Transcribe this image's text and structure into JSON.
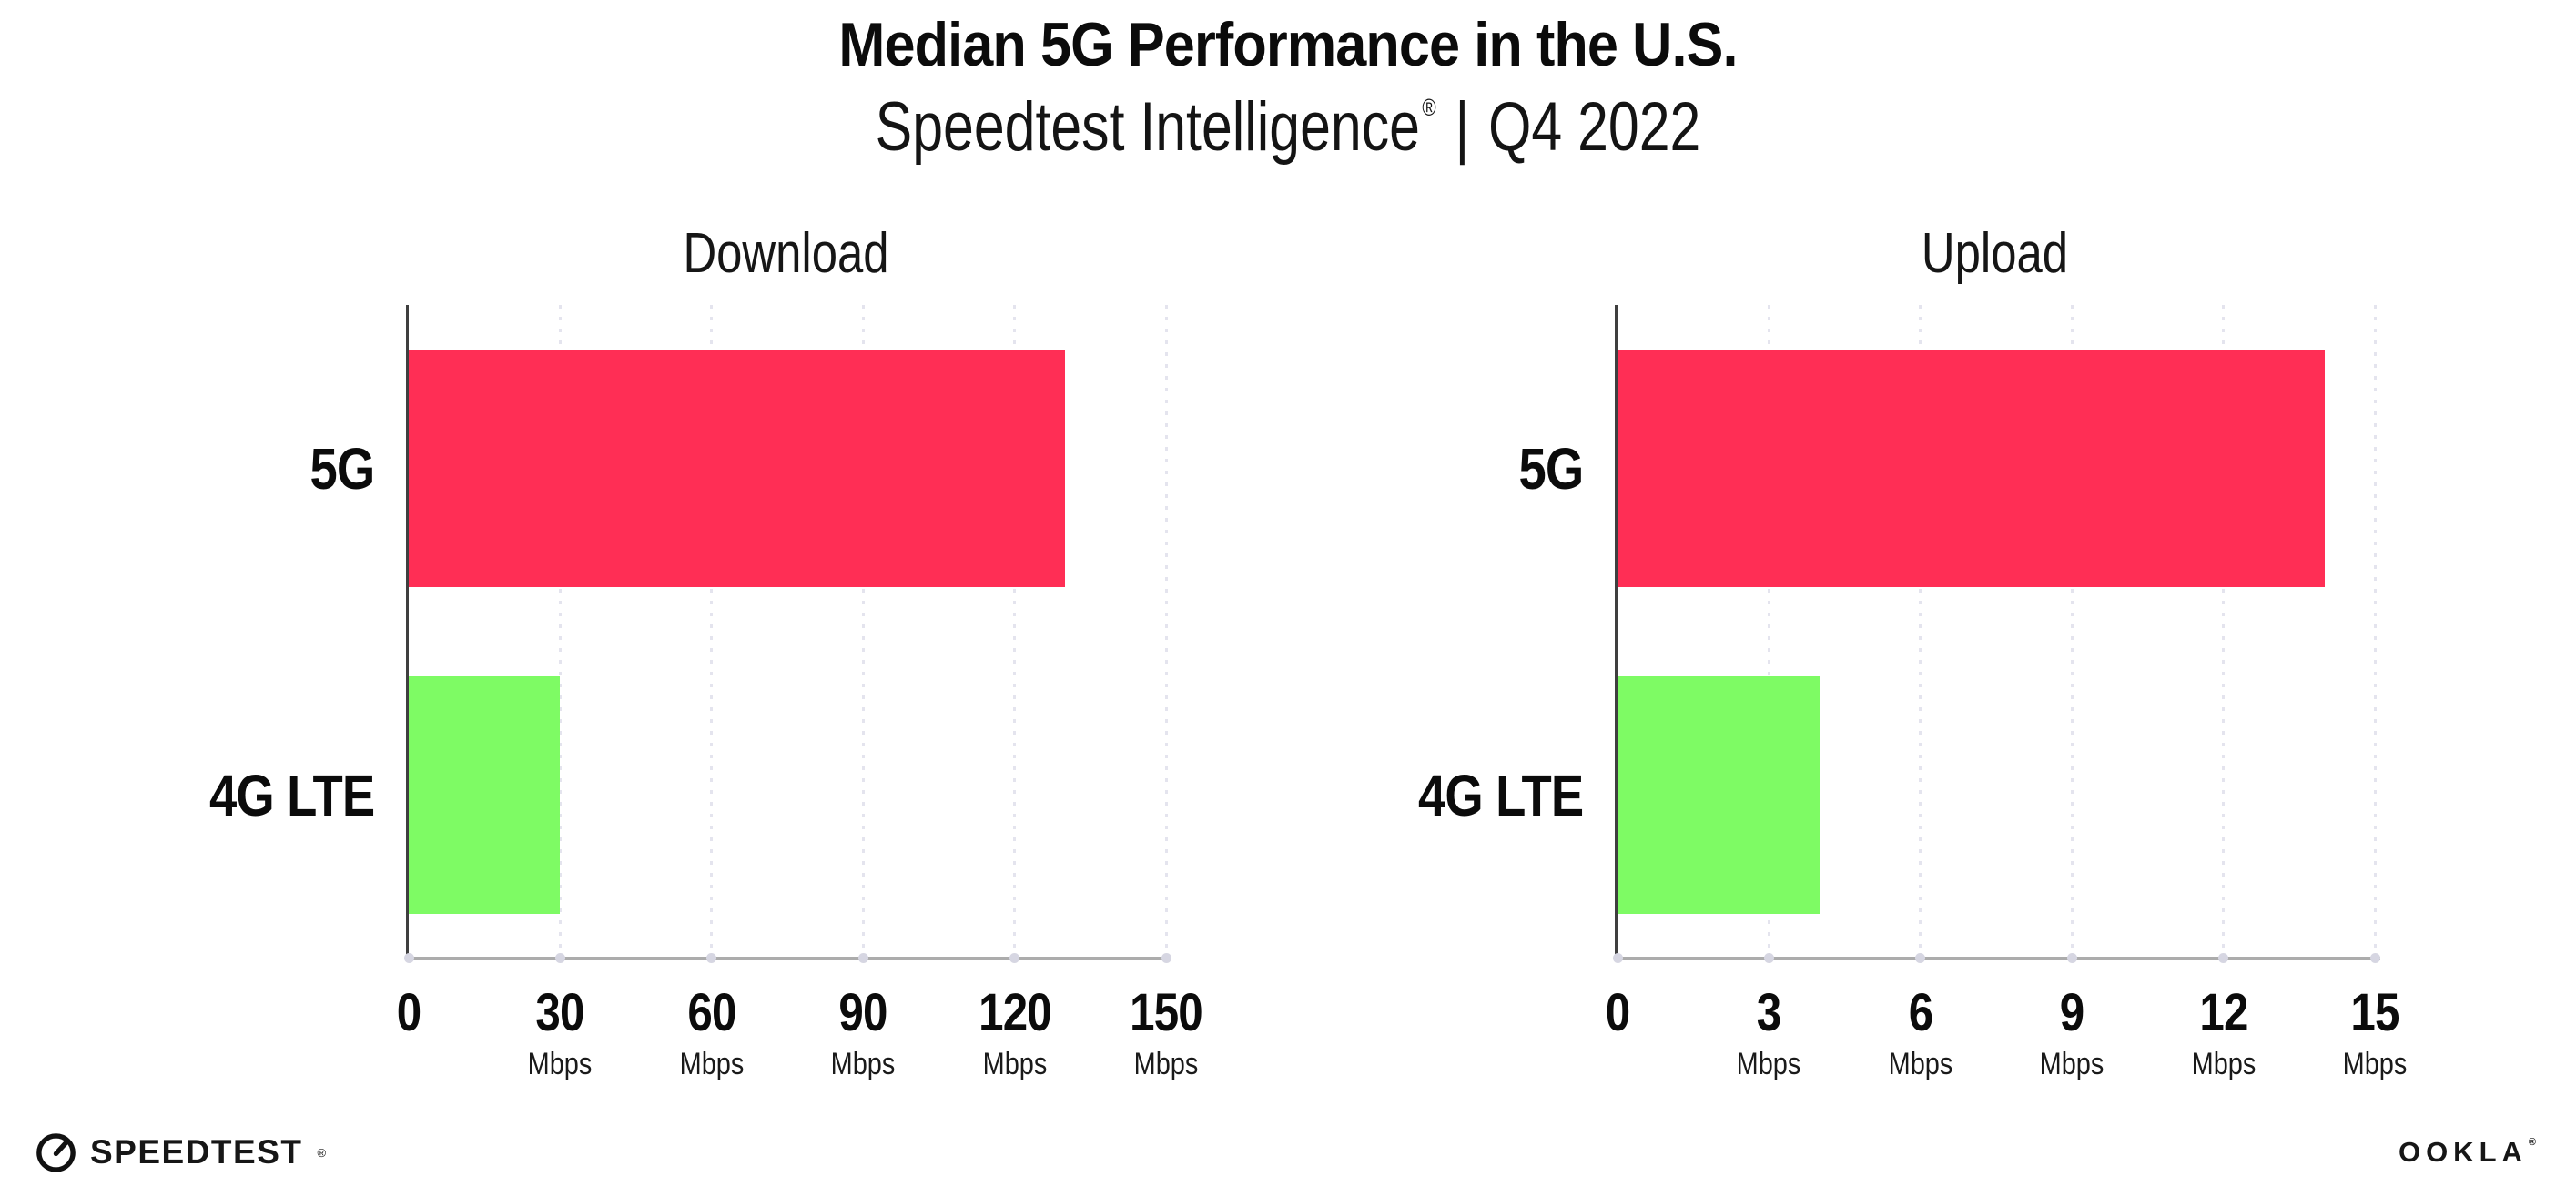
{
  "header": {
    "title": "Median 5G Performance in the U.S.",
    "subtitle_brand": "Speedtest Intelligence",
    "subtitle_reg": "®",
    "subtitle_separator": "|",
    "subtitle_period": "Q4 2022"
  },
  "chart_data": [
    {
      "type": "bar",
      "orientation": "horizontal",
      "title": "Download",
      "categories": [
        "5G",
        "4G LTE"
      ],
      "values": [
        130,
        30
      ],
      "value_unit": "Mbps",
      "xlim": [
        0,
        150
      ],
      "ticks": [
        0,
        30,
        60,
        90,
        120,
        150
      ],
      "tick_unit": "Mbps",
      "bar_colors": [
        "#FF2E55",
        "#7EFB64"
      ],
      "grid": "vertical-dotted",
      "legend": "none"
    },
    {
      "type": "bar",
      "orientation": "horizontal",
      "title": "Upload",
      "categories": [
        "5G",
        "4G LTE"
      ],
      "values": [
        14,
        4
      ],
      "value_unit": "Mbps",
      "xlim": [
        0,
        15
      ],
      "ticks": [
        0,
        3,
        6,
        9,
        12,
        15
      ],
      "tick_unit": "Mbps",
      "bar_colors": [
        "#FF2E55",
        "#7EFB64"
      ],
      "grid": "vertical-dotted",
      "legend": "none"
    }
  ],
  "footer": {
    "speedtest_text": "SPEEDTEST",
    "speedtest_mark": "®",
    "ookla_text": "OOKLA",
    "ookla_mark": "®"
  },
  "icons": {
    "speedtest_gauge": "gauge-icon"
  },
  "colors": {
    "bar_5g": "#FF2E55",
    "bar_4g_lte": "#7EFB64",
    "gridline": "#E4E4EE",
    "x_axis_line": "#ACACAC",
    "y_axis_line": "#3F3F3F",
    "tick_dot": "#D6D6E2",
    "text": "#0B0B0B",
    "background": "#FFFFFF"
  }
}
